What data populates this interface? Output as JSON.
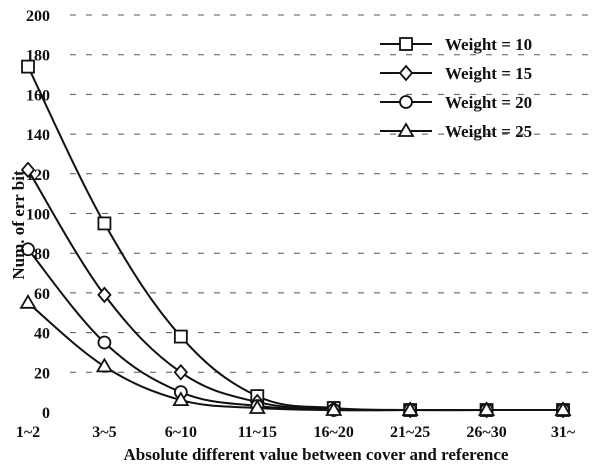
{
  "chart_data": {
    "type": "line",
    "title": "",
    "xlabel": "Absolute different value between cover and reference",
    "ylabel": "Num. of err bit",
    "categories": [
      "1~2",
      "3~5",
      "6~10",
      "11~15",
      "16~20",
      "21~25",
      "26~30",
      "31~"
    ],
    "ylim": [
      0,
      200
    ],
    "yticks": [
      "0",
      "20",
      "40",
      "60",
      "80",
      "100",
      "120",
      "140",
      "160",
      "180",
      "200"
    ],
    "grid": true,
    "legend_position": "top-right",
    "series": [
      {
        "name": "Weight = 10",
        "marker": "square",
        "values": [
          174,
          95,
          38,
          8,
          2,
          1,
          1,
          1
        ]
      },
      {
        "name": "Weight = 15",
        "marker": "diamond",
        "values": [
          122,
          59,
          20,
          5,
          1.5,
          1,
          1,
          1
        ]
      },
      {
        "name": "Weight = 20",
        "marker": "circle",
        "values": [
          82,
          35,
          10,
          3,
          1,
          1,
          1,
          1
        ]
      },
      {
        "name": "Weight = 25",
        "marker": "triangle",
        "values": [
          55,
          23,
          6,
          2,
          1,
          1,
          1,
          1
        ]
      }
    ]
  }
}
